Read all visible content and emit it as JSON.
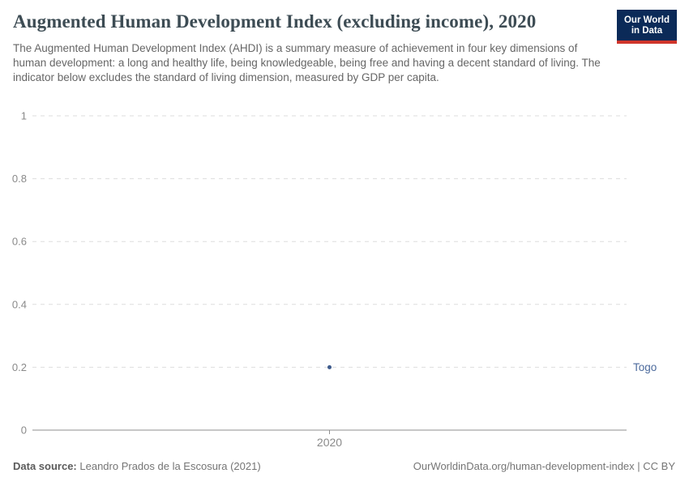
{
  "header": {
    "logo_line1": "Our World",
    "logo_line2": "in Data"
  },
  "colors": {
    "title": "#3d4c54",
    "subtitle": "#666666",
    "gridline": "#dddddd",
    "axis_line": "#8f8f8f",
    "axis_label": "#8a8a8a",
    "series": "#3d5a8c",
    "entity_label": "#4c6a9c",
    "logo_bg": "#0b2a58",
    "logo_red": "#d0352b",
    "footer_text": "#757575"
  },
  "chart_data": {
    "type": "scatter",
    "title": "Augmented Human Development Index (excluding income), 2020",
    "subtitle": "The Augmented Human Development Index (AHDI) is a summary measure of achievement in four key dimensions of human development: a long and healthy life, being knowledgeable, being free and having a decent standard of living. The indicator below excludes the standard of living dimension, measured by GDP per capita.",
    "x": [
      2020
    ],
    "xtick_labels": [
      "2020"
    ],
    "series": [
      {
        "name": "Togo",
        "values": [
          0.2
        ]
      }
    ],
    "ylim": [
      0,
      1
    ],
    "yticks": [
      0,
      0.2,
      0.4,
      0.6,
      0.8,
      1
    ],
    "xlabel": "",
    "ylabel": "",
    "grid": "horizontal-dashed",
    "legend_position": "right-of-point"
  },
  "footer": {
    "source_label": "Data source:",
    "source_value": "Leandro Prados de la Escosura (2021)",
    "url": "OurWorldinData.org/human-development-index",
    "separator": " | ",
    "license": "CC BY"
  }
}
